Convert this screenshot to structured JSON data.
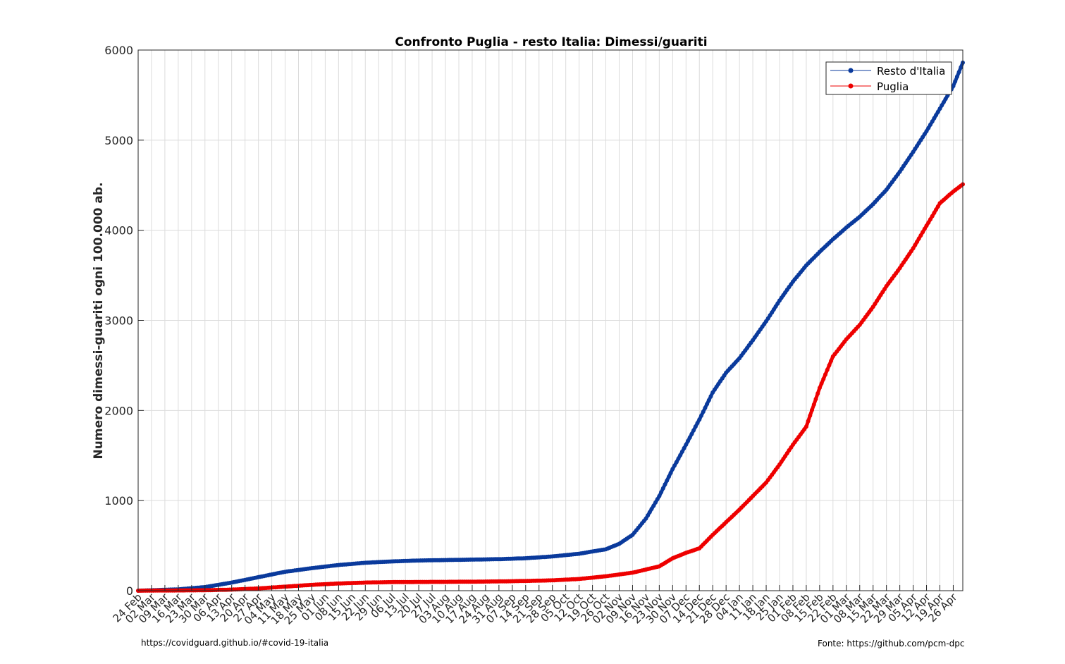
{
  "chart_data": {
    "type": "line",
    "title": "Confronto Puglia - resto Italia: Dimessi/guariti",
    "xlabel": "",
    "ylabel": "Numero dimessi-guariti ogni 100.000 ab.",
    "ylim": [
      0,
      6000
    ],
    "yticks": [
      0,
      1000,
      2000,
      3000,
      4000,
      5000,
      6000
    ],
    "grid": true,
    "legend_position": "top-right",
    "x_start": "2020-02-24",
    "x_end": "2021-05-01",
    "x_tick_labels": [
      "24 Feb",
      "02 Mar",
      "09 Mar",
      "16 Mar",
      "23 Mar",
      "30 Mar",
      "06 Apr",
      "13 Apr",
      "20 Apr",
      "27 Apr",
      "04 May",
      "11 May",
      "18 May",
      "25 May",
      "01 Jun",
      "08 Jun",
      "15 Jun",
      "22 Jun",
      "29 Jun",
      "06 Jul",
      "13 Jul",
      "20 Jul",
      "27 Jul",
      "03 Aug",
      "10 Aug",
      "17 Aug",
      "24 Aug",
      "31 Aug",
      "07 Sep",
      "14 Sep",
      "21 Sep",
      "28 Sep",
      "05 Oct",
      "12 Oct",
      "19 Oct",
      "26 Oct",
      "02 Nov",
      "09 Nov",
      "16 Nov",
      "23 Nov",
      "30 Nov",
      "07 Dec",
      "14 Dec",
      "21 Dec",
      "28 Dec",
      "04 Jan",
      "11 Jan",
      "18 Jan",
      "25 Jan",
      "01 Feb",
      "08 Feb",
      "15 Feb",
      "22 Feb",
      "01 Mar",
      "08 Mar",
      "15 Mar",
      "22 Mar",
      "29 Mar",
      "05 Apr",
      "12 Apr",
      "19 Apr",
      "26 Apr"
    ],
    "series": [
      {
        "name": "Resto d'Italia",
        "color": "#0a3a9c",
        "points": [
          [
            "2020-02-24",
            0
          ],
          [
            "2020-03-16",
            15
          ],
          [
            "2020-03-30",
            40
          ],
          [
            "2020-04-13",
            90
          ],
          [
            "2020-04-27",
            150
          ],
          [
            "2020-05-11",
            210
          ],
          [
            "2020-05-25",
            250
          ],
          [
            "2020-06-08",
            285
          ],
          [
            "2020-06-22",
            310
          ],
          [
            "2020-07-06",
            325
          ],
          [
            "2020-07-20",
            335
          ],
          [
            "2020-08-03",
            340
          ],
          [
            "2020-08-17",
            345
          ],
          [
            "2020-08-31",
            350
          ],
          [
            "2020-09-14",
            360
          ],
          [
            "2020-09-28",
            380
          ],
          [
            "2020-10-12",
            410
          ],
          [
            "2020-10-26",
            460
          ],
          [
            "2020-11-02",
            520
          ],
          [
            "2020-11-09",
            620
          ],
          [
            "2020-11-16",
            800
          ],
          [
            "2020-11-23",
            1050
          ],
          [
            "2020-11-30",
            1350
          ],
          [
            "2020-12-07",
            1620
          ],
          [
            "2020-12-14",
            1900
          ],
          [
            "2020-12-21",
            2200
          ],
          [
            "2020-12-28",
            2420
          ],
          [
            "2021-01-04",
            2580
          ],
          [
            "2021-01-11",
            2780
          ],
          [
            "2021-01-18",
            2990
          ],
          [
            "2021-01-25",
            3220
          ],
          [
            "2021-02-01",
            3430
          ],
          [
            "2021-02-08",
            3610
          ],
          [
            "2021-02-15",
            3760
          ],
          [
            "2021-02-22",
            3900
          ],
          [
            "2021-03-01",
            4030
          ],
          [
            "2021-03-08",
            4150
          ],
          [
            "2021-03-15",
            4290
          ],
          [
            "2021-03-22",
            4450
          ],
          [
            "2021-03-29",
            4650
          ],
          [
            "2021-04-05",
            4870
          ],
          [
            "2021-04-12",
            5100
          ],
          [
            "2021-04-19",
            5350
          ],
          [
            "2021-04-26",
            5600
          ],
          [
            "2021-05-01",
            5860
          ]
        ]
      },
      {
        "name": "Puglia",
        "color": "#ee0000",
        "points": [
          [
            "2020-02-24",
            0
          ],
          [
            "2020-03-30",
            5
          ],
          [
            "2020-04-13",
            12
          ],
          [
            "2020-04-27",
            25
          ],
          [
            "2020-05-11",
            45
          ],
          [
            "2020-05-25",
            65
          ],
          [
            "2020-06-08",
            80
          ],
          [
            "2020-06-22",
            90
          ],
          [
            "2020-07-06",
            95
          ],
          [
            "2020-07-20",
            97
          ],
          [
            "2020-08-03",
            98
          ],
          [
            "2020-08-17",
            100
          ],
          [
            "2020-08-31",
            103
          ],
          [
            "2020-09-14",
            108
          ],
          [
            "2020-09-28",
            115
          ],
          [
            "2020-10-12",
            130
          ],
          [
            "2020-10-26",
            160
          ],
          [
            "2020-11-09",
            200
          ],
          [
            "2020-11-23",
            270
          ],
          [
            "2020-11-30",
            360
          ],
          [
            "2020-12-07",
            420
          ],
          [
            "2020-12-14",
            470
          ],
          [
            "2020-12-21",
            620
          ],
          [
            "2020-12-28",
            760
          ],
          [
            "2021-01-04",
            900
          ],
          [
            "2021-01-11",
            1050
          ],
          [
            "2021-01-18",
            1200
          ],
          [
            "2021-01-25",
            1400
          ],
          [
            "2021-02-01",
            1620
          ],
          [
            "2021-02-08",
            1820
          ],
          [
            "2021-02-15",
            2250
          ],
          [
            "2021-02-22",
            2600
          ],
          [
            "2021-03-01",
            2790
          ],
          [
            "2021-03-08",
            2950
          ],
          [
            "2021-03-15",
            3150
          ],
          [
            "2021-03-22",
            3380
          ],
          [
            "2021-03-29",
            3580
          ],
          [
            "2021-04-05",
            3800
          ],
          [
            "2021-04-12",
            4050
          ],
          [
            "2021-04-19",
            4300
          ],
          [
            "2021-04-26",
            4430
          ],
          [
            "2021-05-01",
            4510
          ]
        ]
      }
    ]
  },
  "footer": {
    "left_url": "https://covidguard.github.io/#covid-19-italia",
    "right_source": "Fonte: https://github.com/pcm-dpc"
  }
}
